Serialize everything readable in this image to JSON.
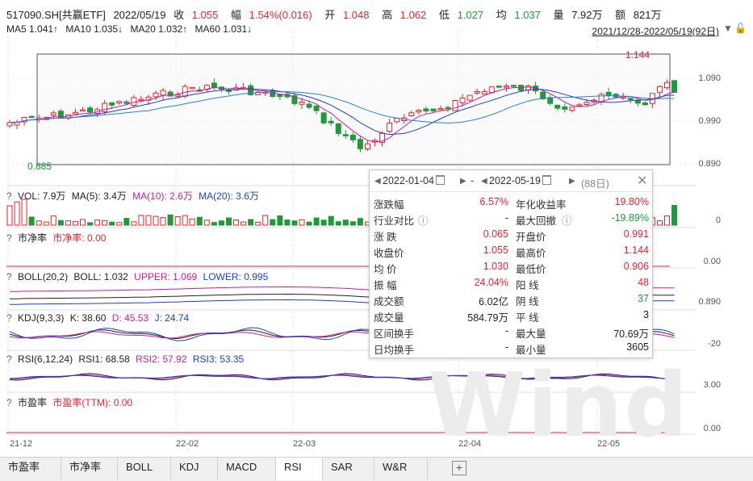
{
  "header": {
    "code": "517090.SH[共赢ETF]",
    "date": "2022/05/19",
    "close_label": "收",
    "close": "1.055",
    "change_label": "幅",
    "change": "1.54%(0.016)",
    "open_label": "开",
    "open": "1.048",
    "high_label": "高",
    "high": "1.062",
    "low_label": "低",
    "low": "1.027",
    "avg_label": "均",
    "avg": "1.037",
    "vol_label": "量",
    "vol": "7.92万",
    "amt_label": "额",
    "amt": "821万"
  },
  "ma": {
    "ma5": "MA5 1.041↑",
    "ma10": "MA10 1.035↓",
    "ma20": "MA20 1.032↑",
    "ma60": "MA60 1.031↓"
  },
  "range_label": "2021/12/28-2022/05/19(92日)",
  "main_axis": [
    "1.090",
    "0.990",
    "0.890"
  ],
  "main_marks": {
    "max": "1.144",
    "min": "0.885"
  },
  "panels": {
    "vol": {
      "name": "VOL: 7.9万",
      "ma5": "MA(5): 3.4万",
      "ma10": "MA(10): 2.6万",
      "ma20": "MA(20): 3.6万",
      "axis": "0"
    },
    "pb": {
      "name": "市净率",
      "val": "市净率: 0.00",
      "axis": "0.00"
    },
    "boll": {
      "name": "BOLL(20,2)",
      "boll": "BOLL: 1.032",
      "upper": "UPPER: 1.069",
      "lower": "LOWER: 0.995",
      "axis": "0.890"
    },
    "kdj": {
      "name": "KDJ(9,3,3)",
      "k": "K: 38.60",
      "d": "D: 45.53",
      "j": "J: 24.74",
      "axis": "-20"
    },
    "rsi": {
      "name": "RSI(6,12,24)",
      "r1": "RSI1: 68.58",
      "r2": "RSI2: 57.92",
      "r3": "RSI3: 53.35",
      "axis": "3.00"
    },
    "pe": {
      "name": "市盈率",
      "val": "市盈率(TTM): 0.00",
      "axis": "0.00"
    }
  },
  "x_ticks": [
    "21-12",
    "22-02",
    "22-03",
    "22-04",
    "22-05"
  ],
  "popup": {
    "start": "2022-01-04",
    "sep": "-",
    "end": "2022-05-19",
    "days": "(88日)",
    "rows": [
      {
        "l1": "涨跌幅",
        "v1": "6.57%",
        "c1": "red",
        "l2": "年化收益率",
        "v2": "19.80%",
        "c2": "red"
      },
      {
        "l1": "行业对比",
        "q1": true,
        "v1": "-",
        "c1": "dark",
        "l2": "最大回撤",
        "q2": true,
        "v2": "-19.89%",
        "c2": "green"
      },
      {
        "l1": "涨 跌",
        "v1": "0.065",
        "c1": "red",
        "l2": "开盘价",
        "v2": "0.991",
        "c2": "red"
      },
      {
        "l1": "收盘价",
        "v1": "1.055",
        "c1": "red",
        "l2": "最高价",
        "v2": "1.144",
        "c2": "red"
      },
      {
        "l1": "均 价",
        "v1": "1.030",
        "c1": "red",
        "l2": "最低价",
        "v2": "0.906",
        "c2": "red"
      },
      {
        "l1": "振 幅",
        "v1": "24.04%",
        "c1": "red",
        "l2": "阳 线",
        "v2": "48",
        "c2": "red"
      },
      {
        "l1": "成交额",
        "v1": "6.02亿",
        "c1": "dark",
        "l2": "阴 线",
        "v2": "37",
        "c2": "green"
      },
      {
        "l1": "成交量",
        "v1": "584.79万",
        "c1": "dark",
        "l2": "平 线",
        "v2": "3",
        "c2": "dark"
      },
      {
        "l1": "区间换手",
        "v1": "-",
        "c1": "dark",
        "l2": "最大量",
        "v2": "70.69万",
        "c2": "dark"
      },
      {
        "l1": "日均换手",
        "v1": "-",
        "c1": "dark",
        "l2": "最小量",
        "v2": "3605",
        "c2": "dark"
      }
    ]
  },
  "tabs": [
    "市盈率",
    "市净率",
    "BOLL",
    "KDJ",
    "MACD",
    "RSI",
    "SAR",
    "W&R"
  ],
  "selected_tab": 5,
  "add_tab": "+",
  "watermark": "Wind",
  "colors": {
    "up": "#e8232d",
    "down": "#1f9a3a",
    "ma5": "#d6189a",
    "ma10": "#1a3fd1",
    "ma20": "#2a7fd6"
  }
}
